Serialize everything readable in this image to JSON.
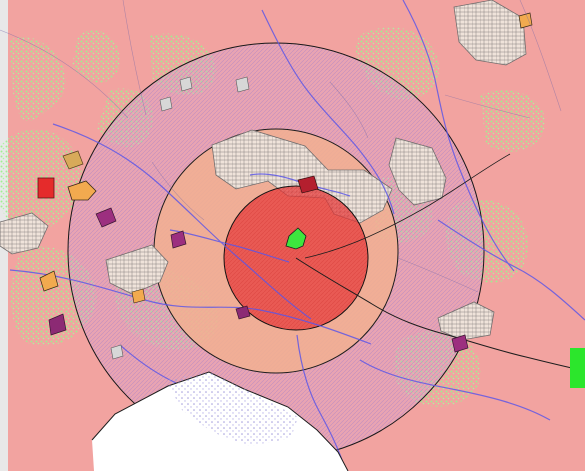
{
  "map": {
    "layers": [
      {
        "name": "land-use-base",
        "color": "#f2a3a0"
      },
      {
        "name": "vegetation-patches",
        "color": "#b7f2b0"
      },
      {
        "name": "outer-buffer-zone",
        "color": "#d8a8d8"
      },
      {
        "name": "middle-buffer-zone",
        "color": "#f2b090"
      },
      {
        "name": "inner-buffer-zone",
        "color": "#e63a3a"
      },
      {
        "name": "center-site",
        "color": "#3ee63e"
      },
      {
        "name": "river-lines",
        "color": "#5a55e8"
      },
      {
        "name": "water-body-lower-left",
        "color": "#ffffff"
      },
      {
        "name": "built-up-blocks",
        "color": "#e8ddd6"
      },
      {
        "name": "legend-swatch-right",
        "color": "#2ce62c"
      }
    ]
  }
}
